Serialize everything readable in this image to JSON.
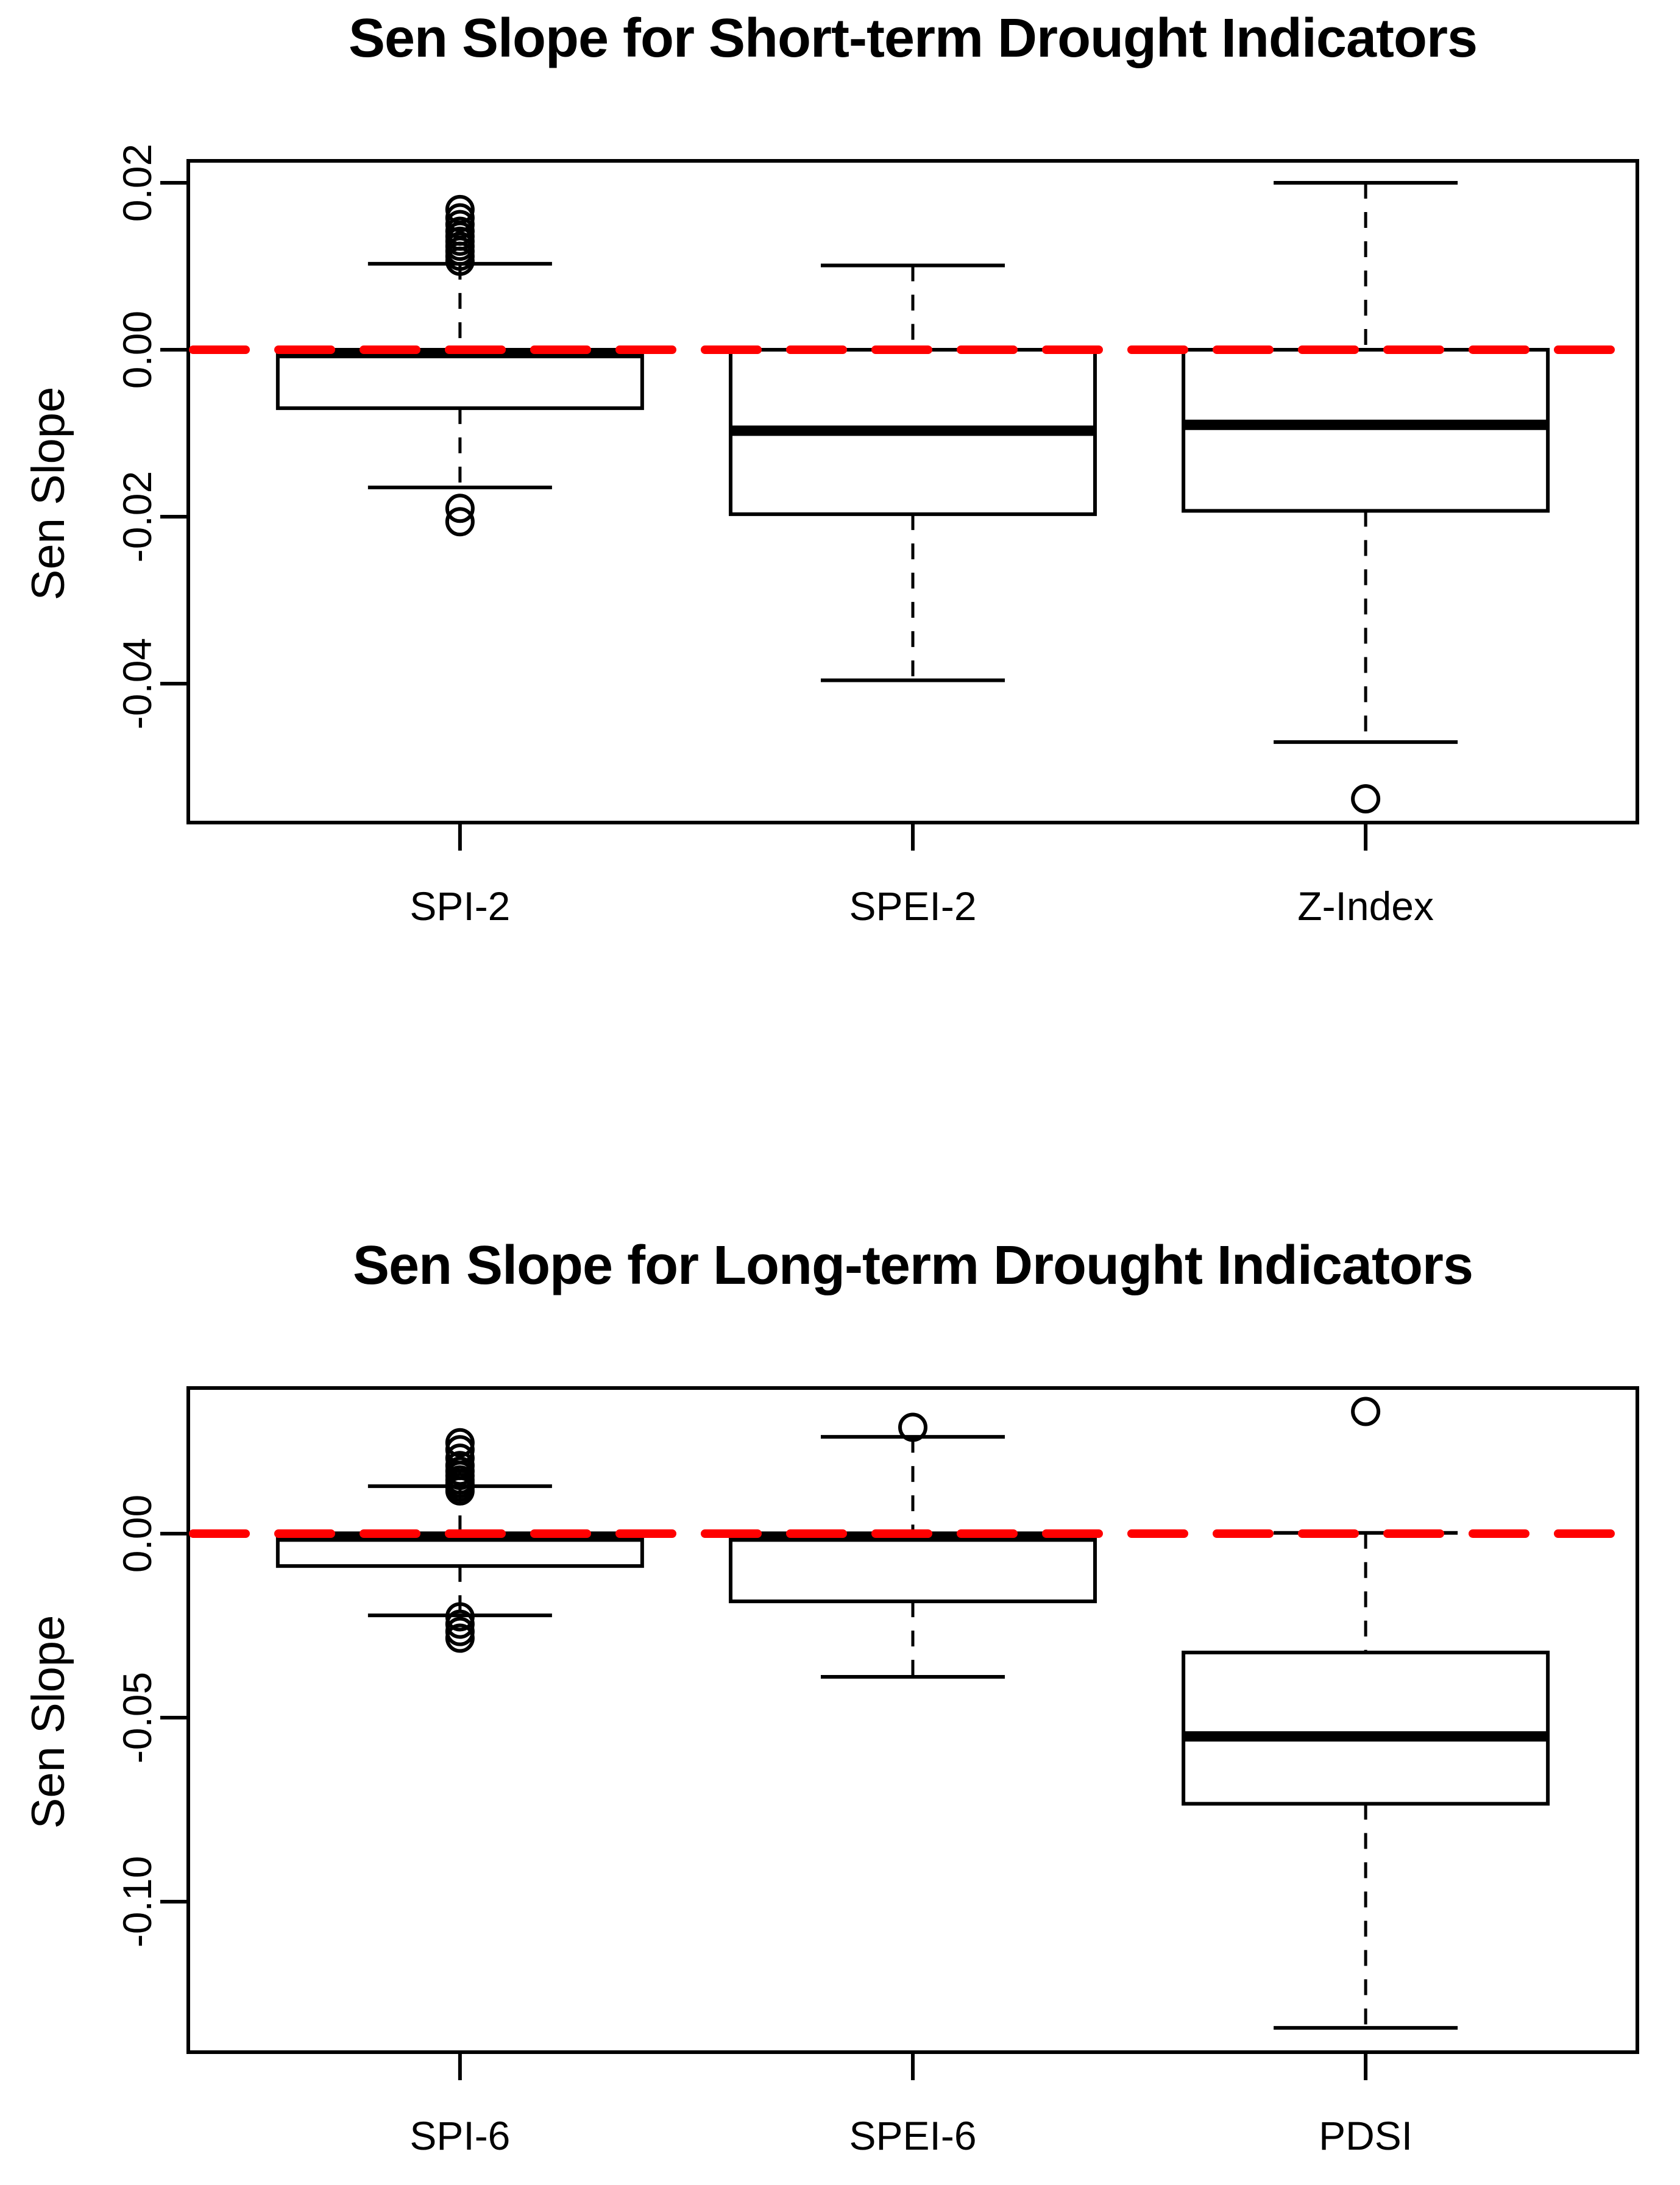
{
  "colors": {
    "reference_line": "#FF0000",
    "stroke": "#000000",
    "background": "#FFFFFF"
  },
  "chart_data": [
    {
      "type": "boxplot",
      "title": "Sen Slope for Short-term Drought Indicators",
      "ylabel": "Sen Slope",
      "xlabel": "",
      "categories": [
        "SPI-2",
        "SPEI-2",
        "Z-Index"
      ],
      "yticks": [
        {
          "value": 0.02,
          "label": "0.02"
        },
        {
          "value": 0.0,
          "label": "0.00"
        },
        {
          "value": -0.02,
          "label": "-0.02"
        },
        {
          "value": -0.04,
          "label": "-0.04"
        }
      ],
      "ylim": [
        -0.0567,
        0.0226
      ],
      "grid": false,
      "legend": false,
      "reference_line": {
        "value": 0,
        "color": "#FF0000",
        "style": "dashed"
      },
      "series": [
        {
          "name": "SPI-2",
          "q1": -0.007,
          "median": -0.0004,
          "q3": 0.0,
          "whisker_low": -0.0165,
          "whisker_high": 0.0103,
          "outliers_high": [
            0.0106,
            0.0112,
            0.0118,
            0.0124,
            0.013,
            0.0136,
            0.0142,
            0.015,
            0.0158,
            0.0168
          ],
          "outliers_low": [
            -0.019,
            -0.0206
          ]
        },
        {
          "name": "SPEI-2",
          "q1": -0.0197,
          "median": -0.0097,
          "q3": 0.0,
          "whisker_low": -0.0396,
          "whisker_high": 0.0101,
          "outliers_high": [],
          "outliers_low": []
        },
        {
          "name": "Z-Index",
          "q1": -0.0193,
          "median": -0.009,
          "q3": 0.0,
          "whisker_low": -0.047,
          "whisker_high": 0.02,
          "outliers_high": [],
          "outliers_low": [
            -0.0538
          ]
        }
      ]
    },
    {
      "type": "boxplot",
      "title": "Sen Slope for Long-term Drought Indicators",
      "ylabel": "Sen Slope",
      "xlabel": "",
      "categories": [
        "SPI-6",
        "SPEI-6",
        "PDSI"
      ],
      "yticks": [
        {
          "value": 0.0,
          "label": "0.00"
        },
        {
          "value": -0.05,
          "label": "-0.05"
        },
        {
          "value": -0.1,
          "label": "-0.10"
        }
      ],
      "ylim": [
        -0.1409,
        0.0396
      ],
      "grid": false,
      "legend": false,
      "reference_line": {
        "value": 0,
        "color": "#FF0000",
        "style": "dashed"
      },
      "series": [
        {
          "name": "SPI-6",
          "q1": -0.0088,
          "median": -0.0008,
          "q3": 0.0,
          "whisker_low": -0.0222,
          "whisker_high": 0.0129,
          "outliers_high": [
            0.0116,
            0.0126,
            0.0136,
            0.0146,
            0.0158,
            0.017,
            0.0185,
            0.0205,
            0.0228,
            0.0247
          ],
          "outliers_low": [
            -0.0226,
            -0.0246,
            -0.0266,
            -0.0284
          ]
        },
        {
          "name": "SPEI-6",
          "q1": -0.0184,
          "median": -0.0008,
          "q3": 0.0,
          "whisker_low": -0.0389,
          "whisker_high": 0.0263,
          "outliers_high": [
            0.0289
          ],
          "outliers_low": []
        },
        {
          "name": "PDSI",
          "q1": -0.0734,
          "median": -0.0551,
          "q3": -0.0323,
          "whisker_low": -0.1343,
          "whisker_high": 0.0002,
          "outliers_high": [
            0.0332
          ],
          "outliers_low": []
        }
      ]
    }
  ]
}
